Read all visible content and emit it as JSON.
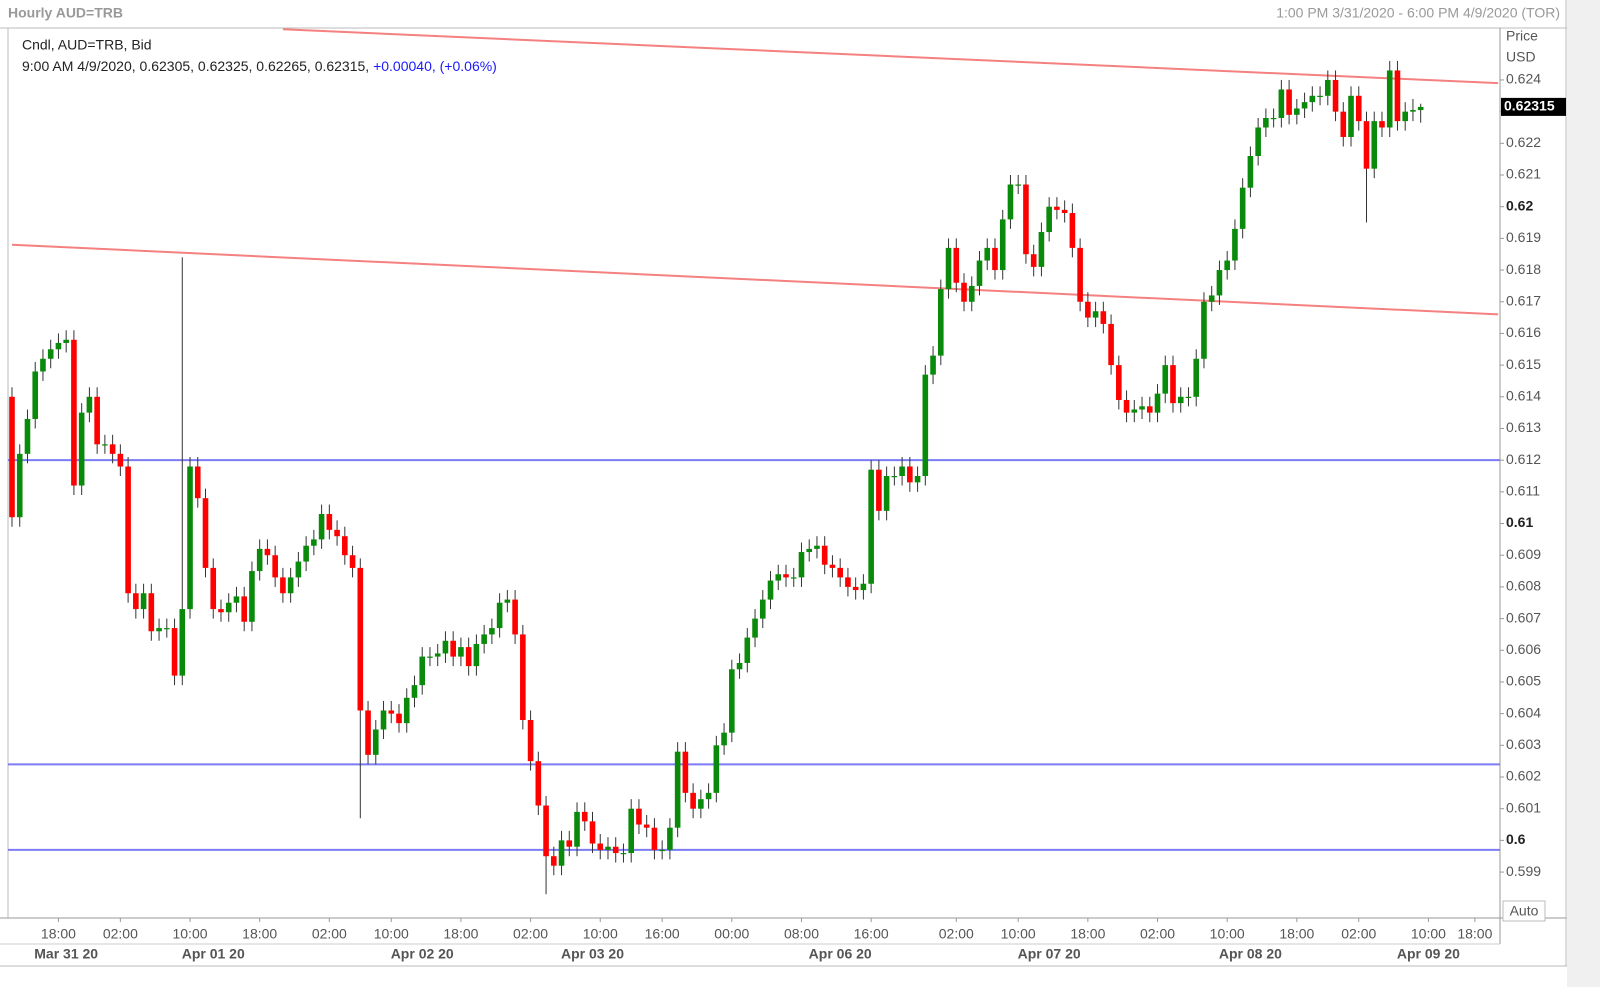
{
  "header": {
    "title": "Hourly AUD=TRB",
    "range": "1:00 PM 3/31/2020 - 6:00 PM 4/9/2020 (TOR)"
  },
  "chart_data": {
    "type": "candlestick",
    "legend": "Cndl, AUD=TRB, Bid",
    "info_line": "9:00 AM 4/9/2020, 0.62305, 0.62325, 0.62265, 0.62315,",
    "info_change": "+0.00040, (+0.06%)",
    "axis_title": "Price",
    "axis_unit": "USD",
    "scale_mode": "Auto",
    "up_color": "#0a8a0a",
    "down_color": "#ff0000",
    "ylim": [
      0.59755,
      0.62564
    ],
    "yticks": [
      0.599,
      0.6,
      0.601,
      0.602,
      0.603,
      0.604,
      0.605,
      0.606,
      0.607,
      0.608,
      0.609,
      0.61,
      0.611,
      0.612,
      0.613,
      0.614,
      0.615,
      0.616,
      0.617,
      0.618,
      0.619,
      0.62,
      0.621,
      0.622,
      0.623,
      0.624
    ],
    "categories": [
      null,
      null,
      null,
      null,
      null,
      null,
      "18:00",
      null,
      null,
      null,
      null,
      null,
      null,
      null,
      "02:00",
      null,
      null,
      null,
      null,
      null,
      null,
      null,
      null,
      "10:00",
      null,
      null,
      null,
      null,
      null,
      null,
      null,
      null,
      "18:00",
      null,
      null,
      null,
      null,
      null,
      null,
      null,
      null,
      "02:00",
      null,
      null,
      null,
      null,
      null,
      null,
      null,
      "10:00",
      null,
      null,
      null,
      null,
      null,
      null,
      null,
      null,
      "18:00",
      null,
      null,
      null,
      null,
      null,
      null,
      null,
      null,
      "02:00",
      null,
      null,
      null,
      null,
      null,
      null,
      null,
      null,
      "10:00",
      null,
      null,
      null,
      null,
      null,
      null,
      null,
      "16:00",
      null,
      null,
      null,
      null,
      null,
      null,
      null,
      null,
      "00:00",
      null,
      null,
      null,
      null,
      null,
      null,
      null,
      null,
      "08:00",
      null,
      null,
      null,
      null,
      null,
      null,
      null,
      null,
      "16:00",
      null,
      null,
      null,
      null,
      null,
      null,
      null,
      null,
      null,
      null,
      "02:00",
      null,
      null,
      null,
      null,
      null,
      null,
      null,
      "10:00",
      null,
      null,
      null,
      null,
      null,
      null,
      null,
      null,
      "18:00",
      null,
      null,
      null,
      null,
      null,
      null,
      null,
      null,
      "02:00",
      null,
      null,
      null,
      null,
      null,
      null,
      null,
      null,
      "10:00",
      null,
      null,
      null,
      null,
      null,
      null,
      null,
      null,
      "18:00",
      null,
      null,
      null,
      null,
      null,
      null,
      null,
      "02:00",
      null,
      null,
      null,
      null,
      null,
      null,
      null,
      null,
      "10:00",
      null,
      null,
      null,
      null,
      null,
      "18:00"
    ],
    "dates": [
      null,
      null,
      null,
      null,
      null,
      null,
      null,
      "Mar 31 20",
      null,
      null,
      null,
      null,
      null,
      null,
      null,
      null,
      null,
      null,
      null,
      null,
      null,
      null,
      null,
      null,
      null,
      null,
      "Apr 01 20",
      null,
      null,
      null,
      null,
      null,
      null,
      null,
      null,
      null,
      null,
      null,
      null,
      null,
      null,
      null,
      null,
      null,
      null,
      null,
      null,
      null,
      null,
      null,
      null,
      null,
      null,
      "Apr 02 20",
      null,
      null,
      null,
      null,
      null,
      null,
      null,
      null,
      null,
      null,
      null,
      null,
      null,
      null,
      null,
      null,
      null,
      null,
      null,
      null,
      null,
      "Apr 03 20",
      null,
      null,
      null,
      null,
      null,
      null,
      null,
      null,
      null,
      null,
      null,
      null,
      null,
      null,
      null,
      null,
      null,
      null,
      null,
      null,
      null,
      null,
      null,
      null,
      null,
      null,
      null,
      null,
      null,
      null,
      null,
      "Apr 06 20",
      null,
      null,
      null,
      null,
      null,
      null,
      null,
      null,
      null,
      null,
      null,
      null,
      null,
      null,
      null,
      null,
      null,
      null,
      null,
      null,
      null,
      null,
      null,
      null,
      null,
      null,
      "Apr 07 20",
      null,
      null,
      null,
      null,
      null,
      null,
      null,
      null,
      null,
      null,
      null,
      null,
      null,
      null,
      null,
      null,
      null,
      null,
      null,
      null,
      null,
      null,
      null,
      null,
      null,
      "Apr 08 20",
      null,
      null,
      null,
      null,
      null,
      null,
      null,
      null,
      null,
      null,
      null,
      null,
      null,
      null,
      null,
      null,
      null,
      null,
      null,
      null,
      null,
      null,
      "Apr 09 20",
      null,
      null,
      null,
      null,
      null,
      null
    ],
    "open": [
      0.614,
      0.6102,
      0.6122,
      0.6133,
      0.6148,
      0.6152,
      0.6155,
      0.6157,
      0.6158,
      0.6112,
      0.6135,
      0.614,
      0.6125,
      0.6125,
      0.6122,
      0.6118,
      0.6078,
      0.6073,
      0.6078,
      0.6066,
      0.6067,
      0.6067,
      0.6052,
      0.6073,
      0.6118,
      0.6108,
      0.6086,
      0.6073,
      0.6072,
      0.6075,
      0.6077,
      0.6069,
      0.6085,
      0.6092,
      0.609,
      0.6083,
      0.6078,
      0.6083,
      0.6088,
      0.6093,
      0.6095,
      0.6103,
      0.6098,
      0.6096,
      0.609,
      0.6086,
      0.6041,
      0.6027,
      0.6035,
      0.6041,
      0.604,
      0.6037,
      0.6045,
      0.6049,
      0.6058,
      0.6058,
      0.6059,
      0.6063,
      0.6058,
      0.6061,
      0.6055,
      0.6062,
      0.6065,
      0.6067,
      0.6075,
      0.6076,
      0.6065,
      0.6038,
      0.6025,
      0.6011,
      0.5995,
      0.5992,
      0.6,
      0.5998,
      0.6009,
      0.6006,
      0.5999,
      0.5997,
      0.5998,
      0.5996,
      0.5996,
      0.601,
      0.6005,
      0.6004,
      0.5997,
      0.5997,
      0.6004,
      0.6028,
      0.6015,
      0.601,
      0.6013,
      0.6015,
      0.603,
      0.6034,
      0.6054,
      0.6056,
      0.6064,
      0.607,
      0.6076,
      0.6082,
      0.6084,
      0.6083,
      0.6083,
      0.6091,
      0.6092,
      0.6093,
      0.6087,
      0.6086,
      0.6083,
      0.608,
      0.6079,
      0.6081,
      0.6117,
      0.6104,
      0.6115,
      0.6115,
      0.6118,
      0.6113,
      0.6115,
      0.6147,
      0.6153,
      0.6174,
      0.6187,
      0.6176,
      0.617,
      0.6175,
      0.6183,
      0.6187,
      0.618,
      0.6196,
      0.6207,
      0.6207,
      0.6185,
      0.6181,
      0.6192,
      0.62,
      0.6199,
      0.6198,
      0.6187,
      0.617,
      0.6165,
      0.6167,
      0.6163,
      0.615,
      0.6139,
      0.6135,
      0.6136,
      0.6137,
      0.6135,
      0.6141,
      0.615,
      0.6138,
      0.614,
      0.614,
      0.6152,
      0.617,
      0.6172,
      0.618,
      0.6183,
      0.6193,
      0.6206,
      0.6216,
      0.6225,
      0.6228,
      0.6228,
      0.6237,
      0.6229,
      0.6231,
      0.6233,
      0.6235,
      0.6235,
      0.624,
      0.623,
      0.6222,
      0.6235,
      0.6227,
      0.6212,
      0.6227,
      0.6225,
      0.6243,
      0.6227,
      0.623,
      0.62305,
      null,
      null,
      null,
      null,
      null,
      null,
      null
    ],
    "high": [
      0.6143,
      0.6125,
      0.6136,
      0.6151,
      0.6155,
      0.6158,
      0.616,
      0.6161,
      0.6161,
      0.6138,
      0.6143,
      0.6143,
      0.6128,
      0.6128,
      0.6125,
      0.6121,
      0.6081,
      0.6081,
      0.6081,
      0.607,
      0.607,
      0.607,
      0.6184,
      0.6121,
      0.6121,
      0.6111,
      0.6089,
      0.6076,
      0.6078,
      0.608,
      0.608,
      0.6088,
      0.6095,
      0.6095,
      0.6093,
      0.6086,
      0.6086,
      0.6091,
      0.6096,
      0.6098,
      0.6106,
      0.6106,
      0.6101,
      0.6099,
      0.6093,
      0.6089,
      0.6044,
      0.6038,
      0.6044,
      0.6044,
      0.6043,
      0.6048,
      0.6052,
      0.6061,
      0.6061,
      0.6062,
      0.6066,
      0.6066,
      0.6064,
      0.6064,
      0.6065,
      0.6068,
      0.607,
      0.6078,
      0.6079,
      0.6079,
      0.6068,
      0.6041,
      0.6028,
      0.6014,
      0.5998,
      0.6003,
      0.6003,
      0.6012,
      0.6012,
      0.6009,
      0.6002,
      0.6001,
      0.6001,
      0.5999,
      0.6013,
      0.6013,
      0.6008,
      0.6007,
      0.6,
      0.6007,
      0.6031,
      0.6031,
      0.6018,
      0.6016,
      0.6018,
      0.6033,
      0.6037,
      0.6057,
      0.6059,
      0.6067,
      0.6073,
      0.6079,
      0.6085,
      0.6087,
      0.6087,
      0.6086,
      0.6094,
      0.6095,
      0.6096,
      0.6096,
      0.609,
      0.6089,
      0.6086,
      0.6083,
      0.6084,
      0.612,
      0.612,
      0.6118,
      0.6118,
      0.6121,
      0.6121,
      0.6118,
      0.615,
      0.6156,
      0.6177,
      0.619,
      0.619,
      0.6179,
      0.6178,
      0.6186,
      0.619,
      0.619,
      0.6199,
      0.621,
      0.621,
      0.621,
      0.6188,
      0.6195,
      0.6203,
      0.6203,
      0.6202,
      0.6201,
      0.619,
      0.6173,
      0.617,
      0.617,
      0.6166,
      0.6153,
      0.6142,
      0.6139,
      0.614,
      0.614,
      0.6144,
      0.6153,
      0.6153,
      0.6143,
      0.6143,
      0.6155,
      0.6173,
      0.6175,
      0.6183,
      0.6186,
      0.6196,
      0.6209,
      0.6219,
      0.6228,
      0.6231,
      0.6231,
      0.624,
      0.624,
      0.6234,
      0.6236,
      0.6238,
      0.6238,
      0.6243,
      0.6243,
      0.6233,
      0.6238,
      0.6238,
      0.623,
      0.623,
      0.623,
      0.6246,
      0.6246,
      0.6233,
      0.6234,
      0.62325,
      null,
      null,
      null,
      null,
      null,
      null,
      null
    ],
    "low": [
      0.6099,
      0.6099,
      0.6119,
      0.613,
      0.6145,
      0.6149,
      0.6152,
      0.6154,
      0.6109,
      0.6109,
      0.6132,
      0.6122,
      0.6122,
      0.6119,
      0.6115,
      0.6075,
      0.607,
      0.607,
      0.6063,
      0.6063,
      0.6064,
      0.6049,
      0.6049,
      0.607,
      0.6105,
      0.6083,
      0.607,
      0.6069,
      0.6069,
      0.6072,
      0.6066,
      0.6066,
      0.6082,
      0.6087,
      0.608,
      0.6075,
      0.6075,
      0.608,
      0.6085,
      0.609,
      0.6092,
      0.6095,
      0.6093,
      0.6087,
      0.6083,
      0.6007,
      0.6024,
      0.6024,
      0.6032,
      0.6037,
      0.6034,
      0.6034,
      0.6042,
      0.6046,
      0.6055,
      0.6055,
      0.6056,
      0.6055,
      0.6055,
      0.6052,
      0.6052,
      0.6059,
      0.6062,
      0.6064,
      0.6072,
      0.6062,
      0.6035,
      0.6022,
      0.6008,
      0.5983,
      0.5989,
      0.5989,
      0.5995,
      0.5995,
      0.6003,
      0.5996,
      0.5994,
      0.5994,
      0.5993,
      0.5993,
      0.5993,
      0.6002,
      0.6001,
      0.5994,
      0.5994,
      0.5994,
      0.6001,
      0.6012,
      0.6007,
      0.6007,
      0.601,
      0.6012,
      0.6027,
      0.6031,
      0.6051,
      0.6053,
      0.6061,
      0.6067,
      0.6073,
      0.6079,
      0.608,
      0.608,
      0.608,
      0.6088,
      0.6089,
      0.6084,
      0.6083,
      0.608,
      0.6077,
      0.6076,
      0.6076,
      0.6078,
      0.6101,
      0.6101,
      0.6112,
      0.6112,
      0.611,
      0.611,
      0.6112,
      0.6144,
      0.615,
      0.6171,
      0.6173,
      0.6167,
      0.6167,
      0.6172,
      0.618,
      0.6177,
      0.6177,
      0.6193,
      0.6204,
      0.6182,
      0.6178,
      0.6178,
      0.6189,
      0.6196,
      0.6195,
      0.6184,
      0.6167,
      0.6162,
      0.6162,
      0.616,
      0.6147,
      0.6136,
      0.6132,
      0.6132,
      0.6133,
      0.6132,
      0.6132,
      0.6138,
      0.6135,
      0.6135,
      0.6137,
      0.6137,
      0.6149,
      0.6167,
      0.6169,
      0.6177,
      0.618,
      0.619,
      0.6203,
      0.6213,
      0.6222,
      0.6225,
      0.6225,
      0.6226,
      0.6226,
      0.6228,
      0.623,
      0.6232,
      0.6232,
      0.6227,
      0.6219,
      0.6219,
      0.6224,
      0.6195,
      0.6209,
      0.6222,
      0.6222,
      0.6224,
      0.6224,
      0.6227,
      0.62265,
      null,
      null,
      null,
      null,
      null,
      null,
      null
    ],
    "close": [
      0.6102,
      0.6122,
      0.6133,
      0.6148,
      0.6152,
      0.6155,
      0.6157,
      0.6158,
      0.6112,
      0.6135,
      0.614,
      0.6125,
      0.6125,
      0.6122,
      0.6118,
      0.6078,
      0.6073,
      0.6078,
      0.6066,
      0.6067,
      0.6067,
      0.6052,
      0.6073,
      0.6118,
      0.6108,
      0.6086,
      0.6073,
      0.6072,
      0.6075,
      0.6077,
      0.6069,
      0.6085,
      0.6092,
      0.609,
      0.6083,
      0.6078,
      0.6083,
      0.6088,
      0.6093,
      0.6095,
      0.6103,
      0.6098,
      0.6096,
      0.609,
      0.6086,
      0.6041,
      0.6027,
      0.6035,
      0.6041,
      0.604,
      0.6037,
      0.6045,
      0.6049,
      0.6058,
      0.6058,
      0.6059,
      0.6063,
      0.6058,
      0.6061,
      0.6055,
      0.6062,
      0.6065,
      0.6067,
      0.6075,
      0.6076,
      0.6065,
      0.6038,
      0.6025,
      0.6011,
      0.5995,
      0.5992,
      0.6,
      0.5998,
      0.6009,
      0.6006,
      0.5999,
      0.5997,
      0.5998,
      0.5996,
      0.5996,
      0.601,
      0.6005,
      0.6004,
      0.5997,
      0.5997,
      0.6004,
      0.6028,
      0.6015,
      0.601,
      0.6013,
      0.6015,
      0.603,
      0.6034,
      0.6054,
      0.6056,
      0.6064,
      0.607,
      0.6076,
      0.6082,
      0.6084,
      0.6083,
      0.6083,
      0.6091,
      0.6092,
      0.6093,
      0.6087,
      0.6086,
      0.6083,
      0.608,
      0.6079,
      0.6081,
      0.6117,
      0.6104,
      0.6115,
      0.6115,
      0.6118,
      0.6113,
      0.6115,
      0.6147,
      0.6153,
      0.6174,
      0.6187,
      0.6176,
      0.617,
      0.6175,
      0.6183,
      0.6187,
      0.618,
      0.6196,
      0.6207,
      0.6207,
      0.6185,
      0.6181,
      0.6192,
      0.62,
      0.6199,
      0.6198,
      0.6187,
      0.617,
      0.6165,
      0.6167,
      0.6163,
      0.615,
      0.6139,
      0.6135,
      0.6136,
      0.6137,
      0.6135,
      0.6141,
      0.615,
      0.6138,
      0.614,
      0.614,
      0.6152,
      0.617,
      0.6172,
      0.618,
      0.6183,
      0.6193,
      0.6206,
      0.6216,
      0.6225,
      0.6228,
      0.6228,
      0.6237,
      0.6229,
      0.6231,
      0.6233,
      0.6235,
      0.6235,
      0.624,
      0.623,
      0.6222,
      0.6235,
      0.6227,
      0.6212,
      0.6227,
      0.6225,
      0.6243,
      0.6227,
      0.623,
      0.62305,
      0.62315,
      null,
      null,
      null,
      null,
      null,
      null,
      null
    ],
    "trend_lines": [
      {
        "color": "#f48080",
        "points": [
          [
            35,
            0.6256
          ],
          [
            192,
            0.6239
          ]
        ]
      },
      {
        "color": "#f48080",
        "points": [
          [
            0,
            0.6188
          ],
          [
            192,
            0.6166
          ]
        ]
      }
    ],
    "levels": [
      {
        "color": "#7b7bf5",
        "value": 0.612
      },
      {
        "color": "#7b7bf5",
        "value": 0.6024
      },
      {
        "color": "#7b7bf5",
        "value": 0.5997
      }
    ]
  }
}
